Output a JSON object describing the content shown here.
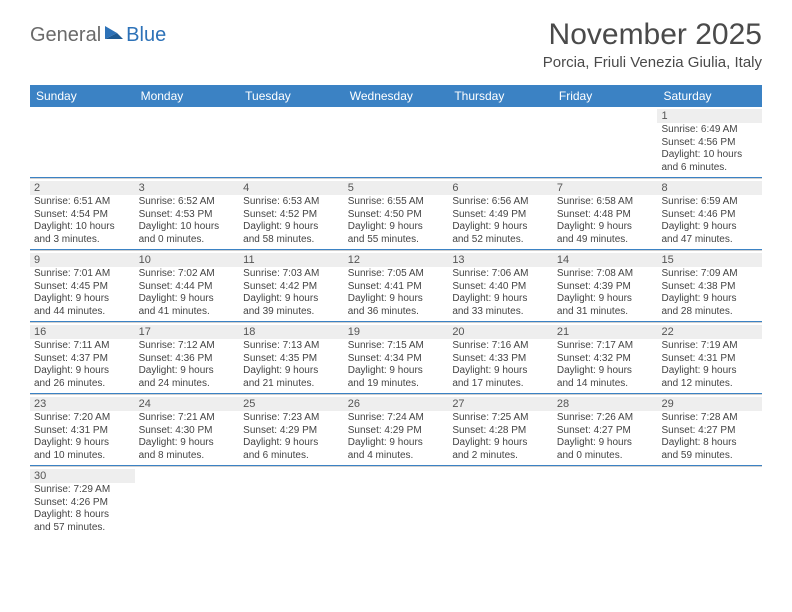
{
  "logo": {
    "general": "General",
    "blue": "Blue"
  },
  "title": "November 2025",
  "location": "Porcia, Friuli Venezia Giulia, Italy",
  "colors": {
    "header_bg": "#3b82c4",
    "header_text": "#ffffff",
    "row_divider": "#3b82c4",
    "daynum_bg": "#eeeeee",
    "text": "#444444"
  },
  "days_of_week": [
    "Sunday",
    "Monday",
    "Tuesday",
    "Wednesday",
    "Thursday",
    "Friday",
    "Saturday"
  ],
  "weeks": [
    [
      {
        "n": "",
        "sr": "",
        "ss": "",
        "dl1": "",
        "dl2": "",
        "empty": true
      },
      {
        "n": "",
        "sr": "",
        "ss": "",
        "dl1": "",
        "dl2": "",
        "empty": true
      },
      {
        "n": "",
        "sr": "",
        "ss": "",
        "dl1": "",
        "dl2": "",
        "empty": true
      },
      {
        "n": "",
        "sr": "",
        "ss": "",
        "dl1": "",
        "dl2": "",
        "empty": true
      },
      {
        "n": "",
        "sr": "",
        "ss": "",
        "dl1": "",
        "dl2": "",
        "empty": true
      },
      {
        "n": "",
        "sr": "",
        "ss": "",
        "dl1": "",
        "dl2": "",
        "empty": true
      },
      {
        "n": "1",
        "sr": "Sunrise: 6:49 AM",
        "ss": "Sunset: 4:56 PM",
        "dl1": "Daylight: 10 hours",
        "dl2": "and 6 minutes."
      }
    ],
    [
      {
        "n": "2",
        "sr": "Sunrise: 6:51 AM",
        "ss": "Sunset: 4:54 PM",
        "dl1": "Daylight: 10 hours",
        "dl2": "and 3 minutes."
      },
      {
        "n": "3",
        "sr": "Sunrise: 6:52 AM",
        "ss": "Sunset: 4:53 PM",
        "dl1": "Daylight: 10 hours",
        "dl2": "and 0 minutes."
      },
      {
        "n": "4",
        "sr": "Sunrise: 6:53 AM",
        "ss": "Sunset: 4:52 PM",
        "dl1": "Daylight: 9 hours",
        "dl2": "and 58 minutes."
      },
      {
        "n": "5",
        "sr": "Sunrise: 6:55 AM",
        "ss": "Sunset: 4:50 PM",
        "dl1": "Daylight: 9 hours",
        "dl2": "and 55 minutes."
      },
      {
        "n": "6",
        "sr": "Sunrise: 6:56 AM",
        "ss": "Sunset: 4:49 PM",
        "dl1": "Daylight: 9 hours",
        "dl2": "and 52 minutes."
      },
      {
        "n": "7",
        "sr": "Sunrise: 6:58 AM",
        "ss": "Sunset: 4:48 PM",
        "dl1": "Daylight: 9 hours",
        "dl2": "and 49 minutes."
      },
      {
        "n": "8",
        "sr": "Sunrise: 6:59 AM",
        "ss": "Sunset: 4:46 PM",
        "dl1": "Daylight: 9 hours",
        "dl2": "and 47 minutes."
      }
    ],
    [
      {
        "n": "9",
        "sr": "Sunrise: 7:01 AM",
        "ss": "Sunset: 4:45 PM",
        "dl1": "Daylight: 9 hours",
        "dl2": "and 44 minutes."
      },
      {
        "n": "10",
        "sr": "Sunrise: 7:02 AM",
        "ss": "Sunset: 4:44 PM",
        "dl1": "Daylight: 9 hours",
        "dl2": "and 41 minutes."
      },
      {
        "n": "11",
        "sr": "Sunrise: 7:03 AM",
        "ss": "Sunset: 4:42 PM",
        "dl1": "Daylight: 9 hours",
        "dl2": "and 39 minutes."
      },
      {
        "n": "12",
        "sr": "Sunrise: 7:05 AM",
        "ss": "Sunset: 4:41 PM",
        "dl1": "Daylight: 9 hours",
        "dl2": "and 36 minutes."
      },
      {
        "n": "13",
        "sr": "Sunrise: 7:06 AM",
        "ss": "Sunset: 4:40 PM",
        "dl1": "Daylight: 9 hours",
        "dl2": "and 33 minutes."
      },
      {
        "n": "14",
        "sr": "Sunrise: 7:08 AM",
        "ss": "Sunset: 4:39 PM",
        "dl1": "Daylight: 9 hours",
        "dl2": "and 31 minutes."
      },
      {
        "n": "15",
        "sr": "Sunrise: 7:09 AM",
        "ss": "Sunset: 4:38 PM",
        "dl1": "Daylight: 9 hours",
        "dl2": "and 28 minutes."
      }
    ],
    [
      {
        "n": "16",
        "sr": "Sunrise: 7:11 AM",
        "ss": "Sunset: 4:37 PM",
        "dl1": "Daylight: 9 hours",
        "dl2": "and 26 minutes."
      },
      {
        "n": "17",
        "sr": "Sunrise: 7:12 AM",
        "ss": "Sunset: 4:36 PM",
        "dl1": "Daylight: 9 hours",
        "dl2": "and 24 minutes."
      },
      {
        "n": "18",
        "sr": "Sunrise: 7:13 AM",
        "ss": "Sunset: 4:35 PM",
        "dl1": "Daylight: 9 hours",
        "dl2": "and 21 minutes."
      },
      {
        "n": "19",
        "sr": "Sunrise: 7:15 AM",
        "ss": "Sunset: 4:34 PM",
        "dl1": "Daylight: 9 hours",
        "dl2": "and 19 minutes."
      },
      {
        "n": "20",
        "sr": "Sunrise: 7:16 AM",
        "ss": "Sunset: 4:33 PM",
        "dl1": "Daylight: 9 hours",
        "dl2": "and 17 minutes."
      },
      {
        "n": "21",
        "sr": "Sunrise: 7:17 AM",
        "ss": "Sunset: 4:32 PM",
        "dl1": "Daylight: 9 hours",
        "dl2": "and 14 minutes."
      },
      {
        "n": "22",
        "sr": "Sunrise: 7:19 AM",
        "ss": "Sunset: 4:31 PM",
        "dl1": "Daylight: 9 hours",
        "dl2": "and 12 minutes."
      }
    ],
    [
      {
        "n": "23",
        "sr": "Sunrise: 7:20 AM",
        "ss": "Sunset: 4:31 PM",
        "dl1": "Daylight: 9 hours",
        "dl2": "and 10 minutes."
      },
      {
        "n": "24",
        "sr": "Sunrise: 7:21 AM",
        "ss": "Sunset: 4:30 PM",
        "dl1": "Daylight: 9 hours",
        "dl2": "and 8 minutes."
      },
      {
        "n": "25",
        "sr": "Sunrise: 7:23 AM",
        "ss": "Sunset: 4:29 PM",
        "dl1": "Daylight: 9 hours",
        "dl2": "and 6 minutes."
      },
      {
        "n": "26",
        "sr": "Sunrise: 7:24 AM",
        "ss": "Sunset: 4:29 PM",
        "dl1": "Daylight: 9 hours",
        "dl2": "and 4 minutes."
      },
      {
        "n": "27",
        "sr": "Sunrise: 7:25 AM",
        "ss": "Sunset: 4:28 PM",
        "dl1": "Daylight: 9 hours",
        "dl2": "and 2 minutes."
      },
      {
        "n": "28",
        "sr": "Sunrise: 7:26 AM",
        "ss": "Sunset: 4:27 PM",
        "dl1": "Daylight: 9 hours",
        "dl2": "and 0 minutes."
      },
      {
        "n": "29",
        "sr": "Sunrise: 7:28 AM",
        "ss": "Sunset: 4:27 PM",
        "dl1": "Daylight: 8 hours",
        "dl2": "and 59 minutes."
      }
    ],
    [
      {
        "n": "30",
        "sr": "Sunrise: 7:29 AM",
        "ss": "Sunset: 4:26 PM",
        "dl1": "Daylight: 8 hours",
        "dl2": "and 57 minutes."
      },
      {
        "n": "",
        "sr": "",
        "ss": "",
        "dl1": "",
        "dl2": "",
        "empty": true
      },
      {
        "n": "",
        "sr": "",
        "ss": "",
        "dl1": "",
        "dl2": "",
        "empty": true
      },
      {
        "n": "",
        "sr": "",
        "ss": "",
        "dl1": "",
        "dl2": "",
        "empty": true
      },
      {
        "n": "",
        "sr": "",
        "ss": "",
        "dl1": "",
        "dl2": "",
        "empty": true
      },
      {
        "n": "",
        "sr": "",
        "ss": "",
        "dl1": "",
        "dl2": "",
        "empty": true
      },
      {
        "n": "",
        "sr": "",
        "ss": "",
        "dl1": "",
        "dl2": "",
        "empty": true
      }
    ]
  ]
}
